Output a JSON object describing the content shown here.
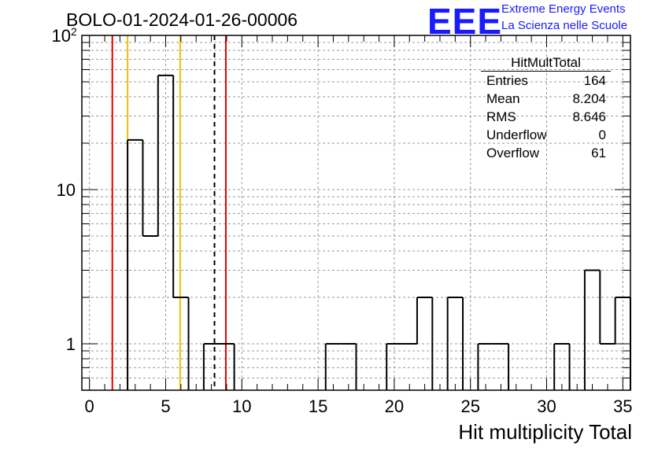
{
  "header": {
    "title": "BOLO-01-2024-01-26-00006",
    "logo_text": "EEE",
    "logo_line1": "Extreme Energy Events",
    "logo_line2": "La Scienza nelle Scuole"
  },
  "stats": {
    "title": "HitMultTotal",
    "rows": [
      {
        "label": "Entries",
        "value": "164"
      },
      {
        "label": "Mean",
        "value": "8.204"
      },
      {
        "label": "RMS",
        "value": "8.646"
      },
      {
        "label": "Underflow",
        "value": "0"
      },
      {
        "label": "Overflow",
        "value": "61"
      }
    ]
  },
  "chart_data": {
    "type": "histogram",
    "xlabel": "Hit multiplicity Total",
    "ylabel": "",
    "xlim": [
      -0.5,
      35.5
    ],
    "ylim": [
      0.5,
      100
    ],
    "yscale": "log",
    "grid": true,
    "x_ticks": [
      "0",
      "5",
      "10",
      "15",
      "20",
      "25",
      "30",
      "35"
    ],
    "y_ticks": [
      {
        "value": 1,
        "label": "1"
      },
      {
        "value": 10,
        "label": "10"
      },
      {
        "value": 100,
        "label": "10",
        "exp": "2"
      }
    ],
    "bin_edges_start": -0.5,
    "bin_width": 1,
    "counts": [
      0,
      0,
      0,
      21,
      5,
      55,
      2,
      0,
      1,
      1,
      0,
      0,
      0,
      0,
      0,
      0,
      1,
      1,
      0,
      0,
      1,
      1,
      2,
      0,
      2,
      0,
      1,
      1,
      0,
      0,
      0,
      1,
      0,
      3,
      1,
      2
    ],
    "vertical_lines": [
      {
        "x": 1.5,
        "color": "#e00000",
        "style": "solid"
      },
      {
        "x": 2.5,
        "color": "#f0c000",
        "style": "solid"
      },
      {
        "x": 5.95,
        "color": "#f0c000",
        "style": "solid"
      },
      {
        "x": 8.204,
        "color": "#000000",
        "style": "dashed"
      },
      {
        "x": 8.95,
        "color": "#e00000",
        "style": "solid"
      }
    ]
  }
}
